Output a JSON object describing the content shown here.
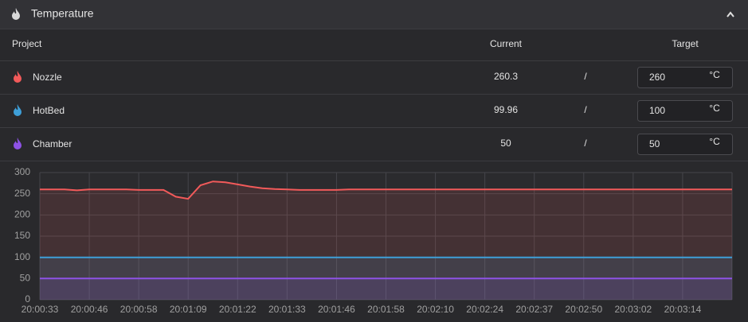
{
  "header": {
    "title": "Temperature"
  },
  "table": {
    "columns": [
      "Project",
      "Current",
      "Target"
    ],
    "separator": "/",
    "unit": "°C",
    "rows": [
      {
        "name": "Nozzle",
        "current": 260.3,
        "target": 260
      },
      {
        "name": "HotBed",
        "current": 99.96,
        "target": 100
      },
      {
        "name": "Chamber",
        "current": 50,
        "target": 50
      }
    ]
  },
  "chart_data": {
    "type": "line",
    "categories": [
      "20:00:33",
      null,
      null,
      null,
      "20:00:46",
      null,
      null,
      null,
      "20:00:58",
      null,
      null,
      null,
      "20:01:09",
      null,
      null,
      null,
      "20:01:22",
      null,
      null,
      null,
      "20:01:33",
      null,
      null,
      null,
      "20:01:46",
      null,
      null,
      null,
      "20:01:58",
      null,
      null,
      null,
      "20:02:10",
      null,
      null,
      null,
      "20:02:24",
      null,
      null,
      null,
      "20:02:37",
      null,
      null,
      null,
      "20:02:50",
      null,
      null,
      null,
      "20:03:02",
      null,
      null,
      null,
      "20:03:14",
      null,
      null,
      null,
      null
    ],
    "series": [
      {
        "color": "#f25a5a",
        "values": [
          260,
          260,
          260,
          258,
          260,
          260,
          260,
          260,
          259,
          259,
          259,
          243,
          238,
          270,
          279,
          277,
          272,
          267,
          263,
          261,
          260,
          259,
          259,
          259,
          259,
          260,
          260,
          260,
          260,
          260,
          260,
          260,
          260,
          260,
          260,
          260,
          260,
          260,
          260,
          260,
          260,
          260,
          260,
          260,
          260,
          260,
          260,
          260,
          260,
          260,
          260,
          260,
          260,
          260,
          260,
          260,
          260
        ]
      },
      {
        "color": "#3e9fd8",
        "values": [
          100,
          100,
          100,
          100,
          100,
          100,
          100,
          100,
          100,
          100,
          100,
          100,
          100,
          100,
          100,
          100,
          100,
          100,
          100,
          100,
          100,
          100,
          100,
          100,
          100,
          100,
          100,
          100,
          100,
          100,
          100,
          100,
          100,
          100,
          100,
          100,
          100,
          100,
          100,
          100,
          100,
          100,
          100,
          100,
          100,
          100,
          100,
          100,
          100,
          100,
          100,
          100,
          100,
          100,
          100,
          100,
          100
        ]
      },
      {
        "color": "#8e52e6",
        "values": [
          50,
          50,
          50,
          50,
          50,
          50,
          50,
          50,
          50,
          50,
          50,
          50,
          50,
          50,
          50,
          50,
          50,
          50,
          50,
          50,
          50,
          50,
          50,
          50,
          50,
          50,
          50,
          50,
          50,
          50,
          50,
          50,
          50,
          50,
          50,
          50,
          50,
          50,
          50,
          50,
          50,
          50,
          50,
          50,
          50,
          50,
          50,
          50,
          50,
          50,
          50,
          50,
          50,
          50,
          50,
          50,
          50
        ]
      }
    ],
    "ylim": [
      0,
      300
    ],
    "yticks": [
      0,
      50,
      100,
      150,
      200,
      250,
      300
    ],
    "grid": true
  }
}
